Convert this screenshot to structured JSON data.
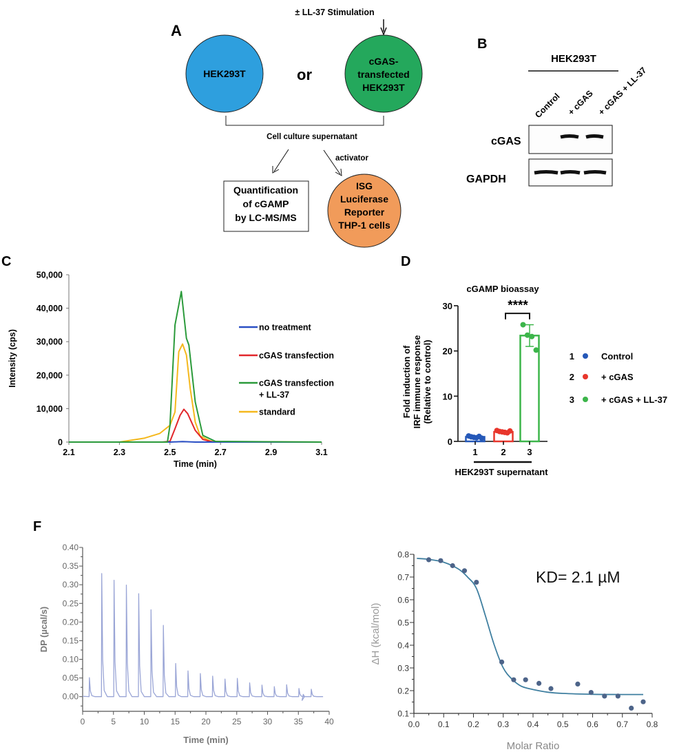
{
  "panel_labels": {
    "a": "A",
    "b": "B",
    "c": "C",
    "d": "D",
    "f": "F"
  },
  "colors": {
    "hek_circle": "#2e9fde",
    "cgas_circle": "#24a85c",
    "thp_circle": "#f19b5a",
    "no_treatment": "#2a4fc4",
    "cgas_transfection": "#e2262b",
    "cgas_ll37": "#2a9a3a",
    "standard": "#f5b81c",
    "d_control": "#2558b8",
    "d_cgas": "#e8362c",
    "d_cgas_ll37": "#3cb54a",
    "itc_trace": "#9aa5d6",
    "itc_fit": "#3f7fa0",
    "itc_points": "#4d6489"
  },
  "panel_a": {
    "stimulation": "± LL-37 Stimulation",
    "circle_left": "HEK293T",
    "or": "or",
    "circle_right": [
      "cGAS-",
      "transfected",
      "HEK293T"
    ],
    "supernatant": "Cell culture supernatant",
    "activator": "activator",
    "box": [
      "Quantification",
      "of cGAMP",
      "by LC-MS/MS"
    ],
    "reporter": [
      "ISG",
      "Luciferase",
      "Reporter",
      "THP-1 cells"
    ]
  },
  "panel_b": {
    "title": "HEK293T",
    "lanes": [
      "Control",
      "+ cGAS",
      "+ cGAS + LL-37"
    ],
    "rows": [
      "cGAS",
      "GAPDH"
    ]
  },
  "chart_data": [
    {
      "type": "line",
      "panel": "C",
      "xlabel": "Time (min)",
      "ylabel": "Intensity (cps)",
      "xlim": [
        2.1,
        3.1
      ],
      "ylim": [
        0,
        50000
      ],
      "xticks": [
        "2.1",
        "2.3",
        "2.5",
        "2.7",
        "2.9",
        "3.1"
      ],
      "yticks": [
        "0",
        "10,000",
        "20,000",
        "30,000",
        "40,000",
        "50,000"
      ],
      "legend_position": "right",
      "series": [
        {
          "name": "no treatment",
          "x": [
            2.1,
            2.5,
            2.55,
            2.6,
            3.1
          ],
          "y": [
            0,
            0,
            150,
            0,
            0
          ]
        },
        {
          "name": "cGAS transfection",
          "x": [
            2.1,
            2.47,
            2.5,
            2.52,
            2.54,
            2.555,
            2.57,
            2.6,
            2.63,
            2.67,
            3.1
          ],
          "y": [
            0,
            0,
            200,
            4000,
            8000,
            9800,
            8500,
            3500,
            800,
            0,
            0
          ]
        },
        {
          "name": "cGAS transfection\n+ LL-37",
          "x": [
            2.1,
            2.49,
            2.5,
            2.52,
            2.54,
            2.545,
            2.555,
            2.565,
            2.575,
            2.6,
            2.63,
            2.68,
            3.1
          ],
          "y": [
            0,
            0,
            5000,
            35000,
            43000,
            45000,
            38000,
            31000,
            29000,
            12000,
            2000,
            200,
            0
          ]
        },
        {
          "name": "standard",
          "x": [
            2.1,
            2.3,
            2.4,
            2.46,
            2.5,
            2.52,
            2.535,
            2.55,
            2.565,
            2.58,
            2.6,
            2.62,
            2.66,
            2.7,
            3.1
          ],
          "y": [
            0,
            0,
            1200,
            2600,
            5000,
            9000,
            27000,
            29300,
            26000,
            16000,
            6000,
            1800,
            300,
            100,
            0
          ]
        }
      ]
    },
    {
      "type": "bar",
      "panel": "D",
      "title": "cGAMP bioassay",
      "ylabel": "Fold induction of\nIRF immune response\n(Relative to control)",
      "xlabel": "HEK293T supernatant",
      "categories": [
        "1",
        "2",
        "3"
      ],
      "ylim": [
        0,
        30
      ],
      "yticks": [
        "0",
        "10",
        "20",
        "30"
      ],
      "values": [
        1.0,
        2.1,
        23.4
      ],
      "errors": [
        0.2,
        0.15,
        2.4
      ],
      "points": [
        [
          1.2,
          1.0,
          0.9,
          0.8,
          1.1,
          0.7
        ],
        [
          2.4,
          2.2,
          2.1,
          2.0,
          1.9,
          2.3
        ],
        [
          25.8,
          23.5,
          23.2,
          20.2
        ]
      ],
      "significance": "****",
      "legend": [
        {
          "num": "1",
          "label": "Control"
        },
        {
          "num": "2",
          "label": "+ cGAS"
        },
        {
          "num": "3",
          "label": "+ cGAS + LL-37"
        }
      ]
    },
    {
      "type": "line",
      "panel": "F-left",
      "xlabel": "Time (min)",
      "ylabel": "DP (µcal/s)",
      "xlim": [
        0,
        40
      ],
      "ylim": [
        -0.04,
        0.4
      ],
      "xticks": [
        "0",
        "5",
        "10",
        "15",
        "20",
        "25",
        "30",
        "35",
        "40"
      ],
      "yticks": [
        "0.00",
        "0.05",
        "0.10",
        "0.15",
        "0.20",
        "0.25",
        "0.30",
        "0.35",
        "0.40"
      ],
      "injection_times": [
        1.1,
        3.1,
        5.1,
        7.1,
        9.1,
        11.1,
        13.1,
        15.1,
        17.1,
        19.1,
        21.1,
        23.1,
        25.1,
        27.1,
        29.1,
        31.1,
        33.1,
        35.1,
        37.1
      ],
      "peak_heights": [
        0.051,
        0.33,
        0.312,
        0.299,
        0.276,
        0.233,
        0.191,
        0.089,
        0.069,
        0.062,
        0.055,
        0.047,
        0.049,
        0.037,
        0.031,
        0.027,
        0.032,
        0.022,
        0.02
      ]
    },
    {
      "type": "scatter",
      "panel": "F-right",
      "xlabel": "Molar Ratio",
      "ylabel": "ΔH (kcal/mol)",
      "annotation": "KD= 2.1 µM",
      "xlim": [
        0.0,
        0.8
      ],
      "ylim": [
        0.1,
        0.8
      ],
      "xticks": [
        "0.0",
        "0.1",
        "0.2",
        "0.3",
        "0.4",
        "0.5",
        "0.6",
        "0.7",
        "0.8"
      ],
      "yticks": [
        "0.1",
        "0.2",
        "0.3",
        "0.4",
        "0.5",
        "0.6",
        "0.7",
        "0.8"
      ],
      "x": [
        0.05,
        0.09,
        0.13,
        0.17,
        0.21,
        0.295,
        0.335,
        0.375,
        0.42,
        0.46,
        0.55,
        0.595,
        0.64,
        0.685,
        0.73,
        0.77
      ],
      "y": [
        0.776,
        0.772,
        0.75,
        0.728,
        0.677,
        0.326,
        0.248,
        0.248,
        0.232,
        0.209,
        0.229,
        0.192,
        0.176,
        0.176,
        0.123,
        0.151
      ],
      "fit": {
        "x": [
          0.01,
          0.05,
          0.1,
          0.15,
          0.18,
          0.21,
          0.24,
          0.27,
          0.3,
          0.33,
          0.36,
          0.4,
          0.45,
          0.5,
          0.6,
          0.7,
          0.77
        ],
        "y": [
          0.782,
          0.778,
          0.765,
          0.735,
          0.7,
          0.65,
          0.53,
          0.4,
          0.3,
          0.25,
          0.22,
          0.205,
          0.193,
          0.188,
          0.184,
          0.183,
          0.183
        ]
      }
    }
  ]
}
